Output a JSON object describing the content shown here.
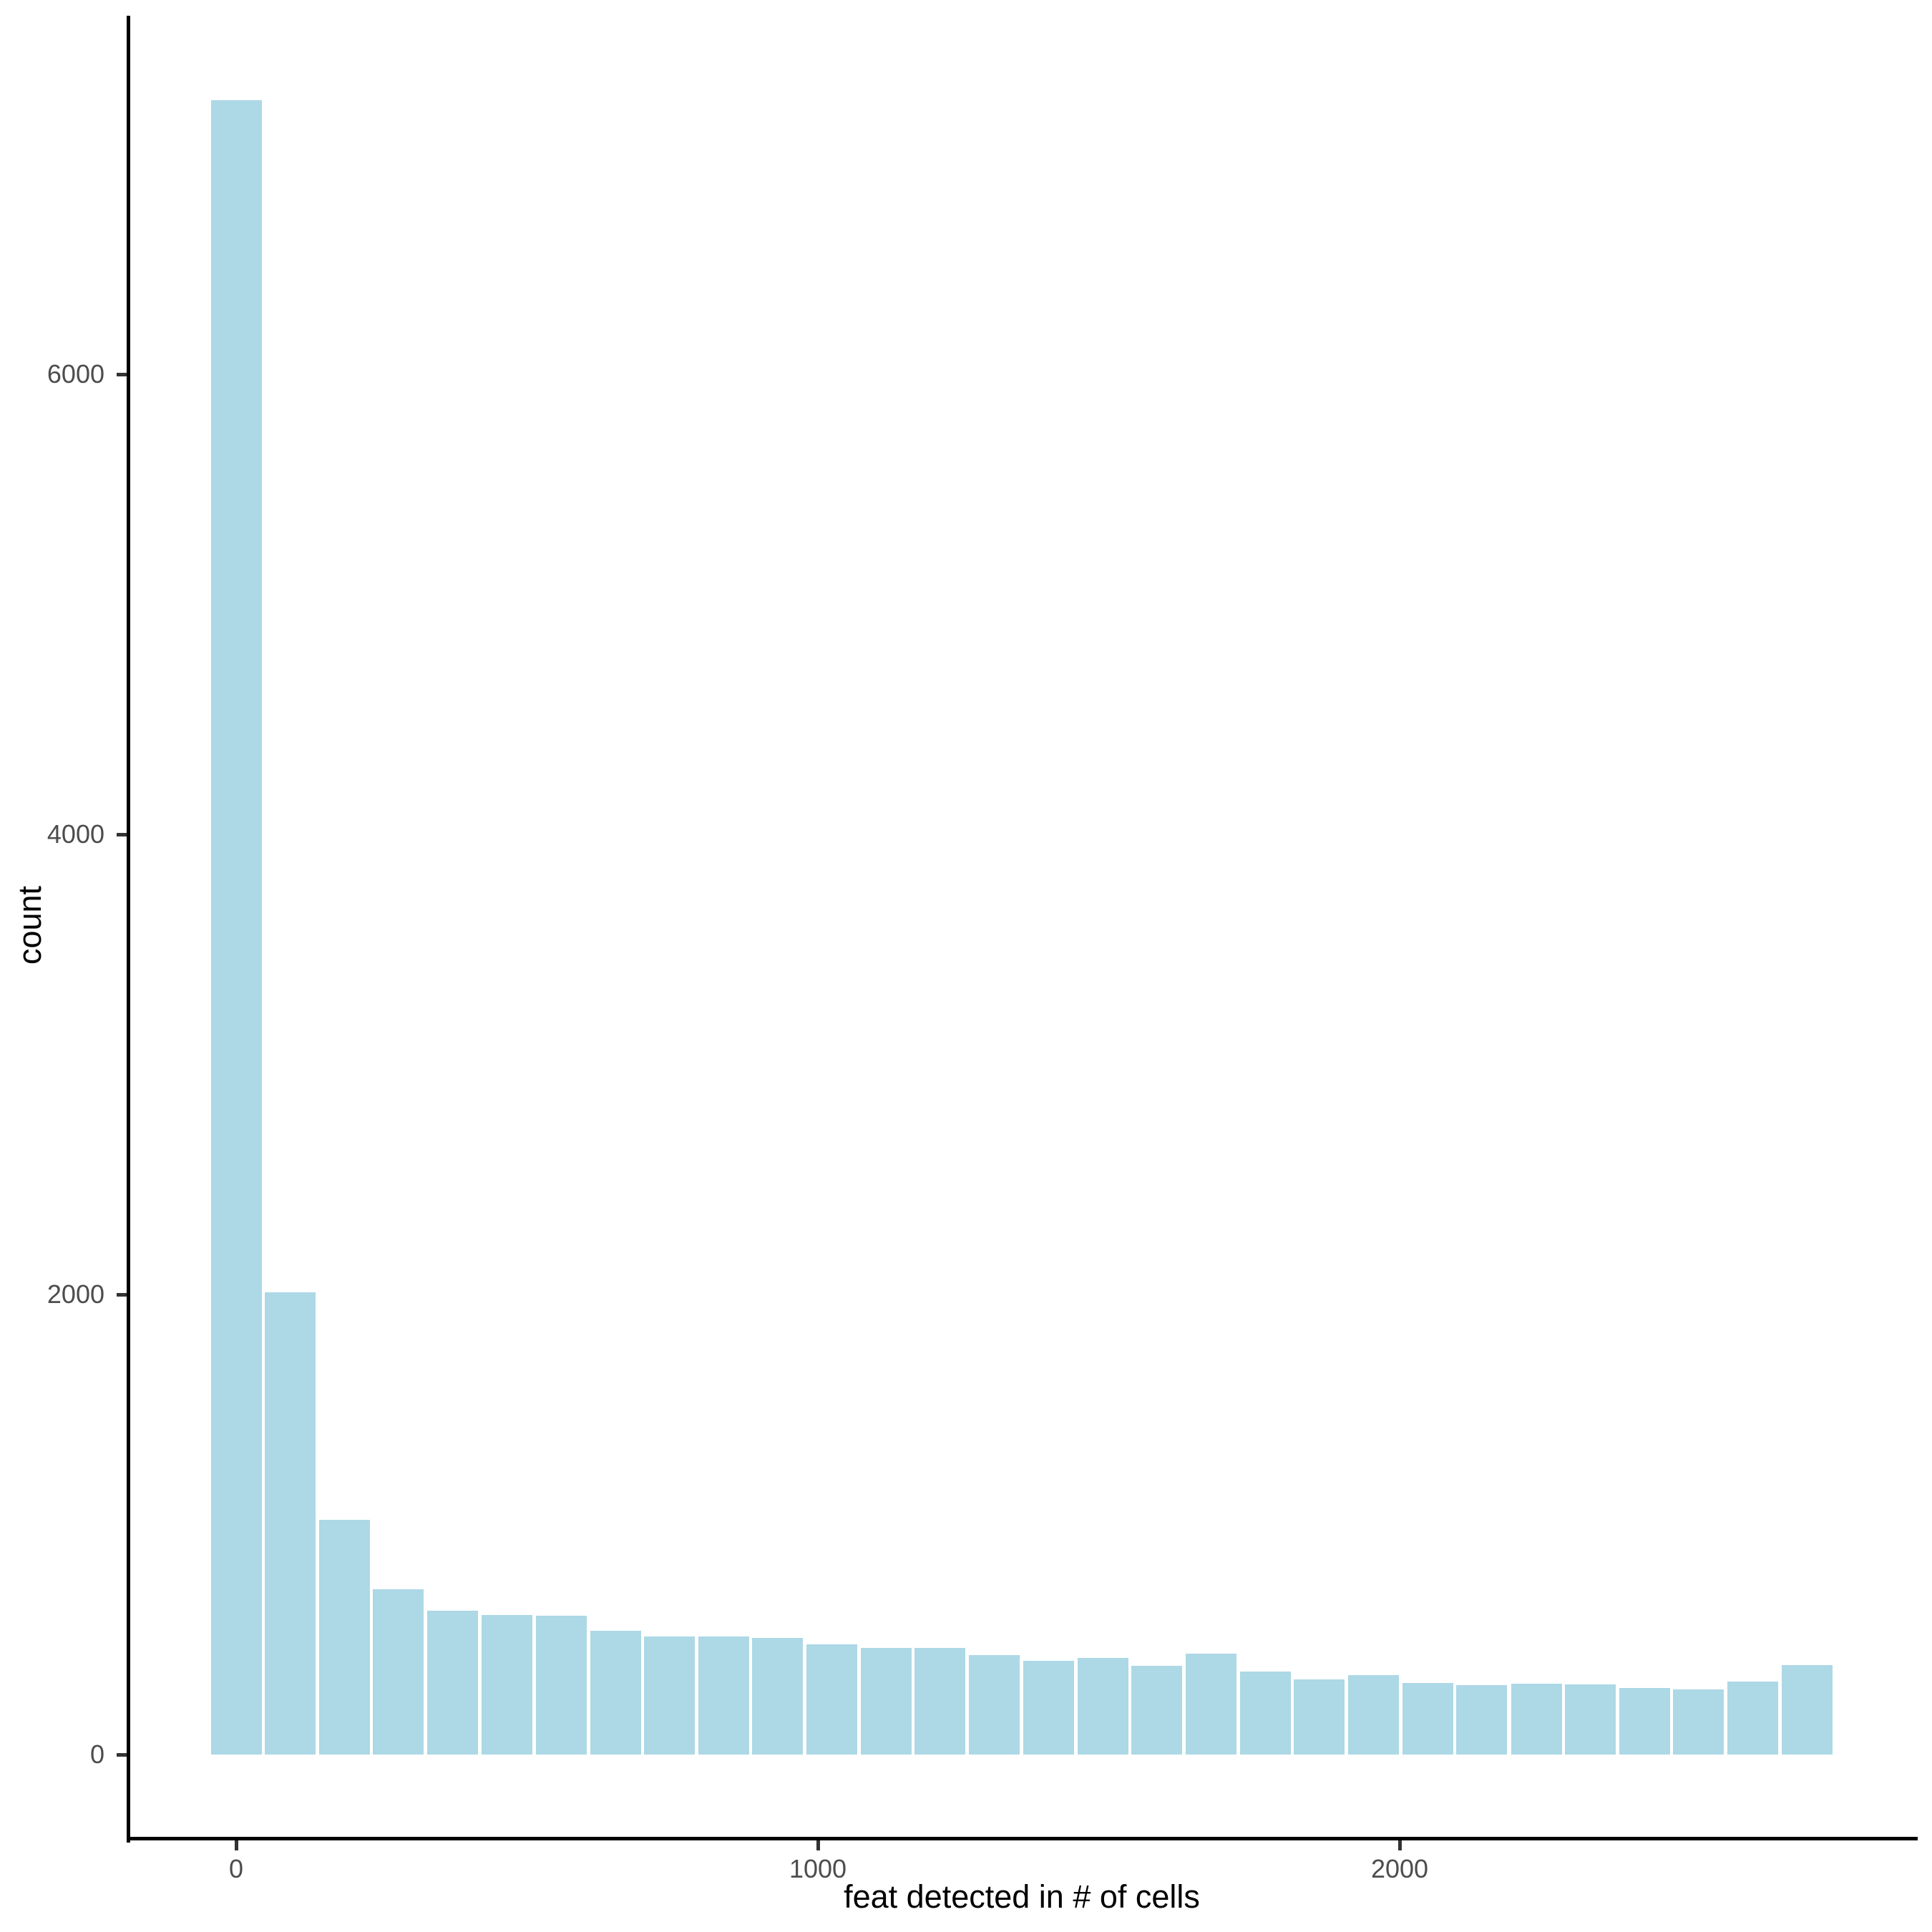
{
  "chart_data": {
    "type": "bar",
    "subtype": "histogram",
    "title": "",
    "xlabel": "feat detected in # of cells",
    "ylabel": "count",
    "x_ticks": [
      0,
      1000,
      2000
    ],
    "y_ticks": [
      0,
      2000,
      4000,
      6000
    ],
    "xlim": [
      -186,
      2890
    ],
    "ylim": [
      0,
      7550
    ],
    "grid": false,
    "legend": false,
    "bar_color": "#ADD8E6",
    "bin_width": 93,
    "bin_centers": [
      0,
      93,
      186,
      279,
      372,
      466,
      559,
      652,
      745,
      838,
      931,
      1024,
      1117,
      1210,
      1303,
      1397,
      1490,
      1583,
      1676,
      1769,
      1862,
      1955,
      2048,
      2141,
      2235,
      2328,
      2421,
      2514,
      2607,
      2700
    ],
    "counts": [
      7190,
      2010,
      1020,
      719,
      625,
      607,
      603,
      538,
      513,
      513,
      507,
      479,
      463,
      463,
      432,
      407,
      420,
      386,
      439,
      361,
      327,
      345,
      311,
      302,
      308,
      305,
      289,
      283,
      317,
      389
    ]
  },
  "colors": {
    "background": "#FFFFFF",
    "bar_fill": "#ADD8E6",
    "axis_line": "#000000",
    "tick_mark": "#333333",
    "tick_label": "#4D4D4D",
    "axis_title": "#000000"
  }
}
